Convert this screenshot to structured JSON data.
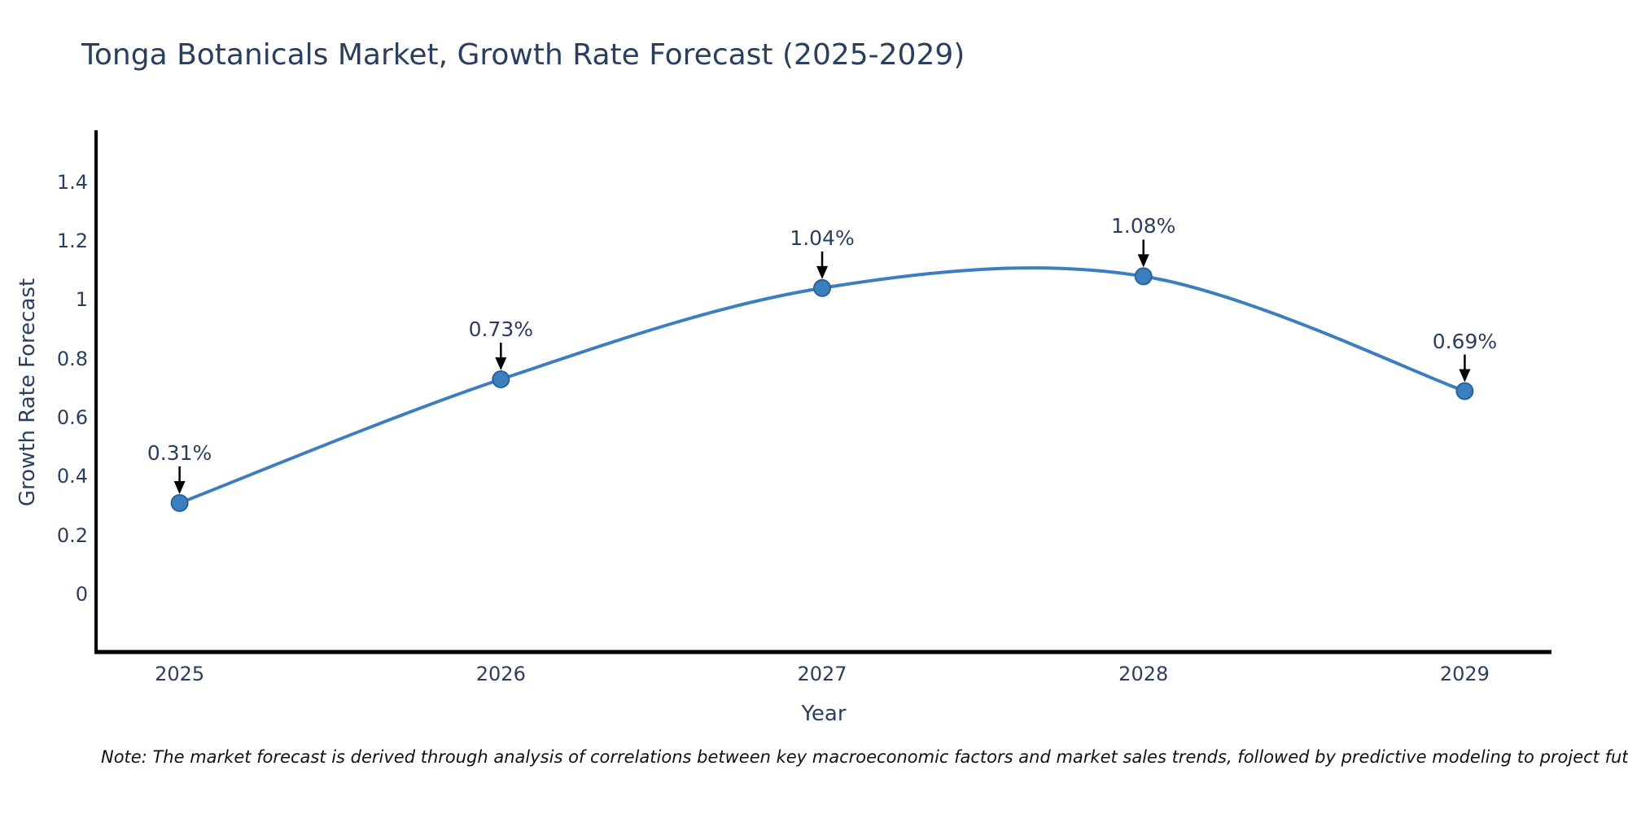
{
  "chart": {
    "note": "Note: The market forecast is derived through analysis of correlations between key macroeconomic factors and market sales trends, followed by predictive modeling to project future sales",
    "colors": {
      "line": "#3d7ebf",
      "marker_fill": "#3d7ebf",
      "marker_edge": "#2a639c",
      "axis": "#000000",
      "arrow": "#000000",
      "text": "#2a3f5f"
    }
  },
  "chart_data": {
    "type": "line",
    "title": "Tonga Botanicals Market, Growth Rate Forecast (2025-2029)",
    "xlabel": "Year",
    "ylabel": "Growth Rate Forecast",
    "x": [
      2025,
      2026,
      2027,
      2028,
      2029
    ],
    "values": [
      0.31,
      0.73,
      1.04,
      1.08,
      0.69
    ],
    "point_labels": [
      "0.31%",
      "0.73%",
      "1.04%",
      "1.08%",
      "0.69%"
    ],
    "x_tick_labels": [
      "2025",
      "2026",
      "2027",
      "2028",
      "2029"
    ],
    "y_ticks": [
      0,
      0.2,
      0.4,
      0.6,
      0.8,
      1,
      1.2,
      1.4
    ],
    "y_tick_labels": [
      "0",
      "0.2",
      "0.4",
      "0.6",
      "0.8",
      "1",
      "1.2",
      "1.4"
    ],
    "xlim": [
      2024.74,
      2029.27
    ],
    "ylim": [
      -0.196,
      1.576
    ],
    "line_shape": "spline",
    "grid": false,
    "legend": "none"
  }
}
